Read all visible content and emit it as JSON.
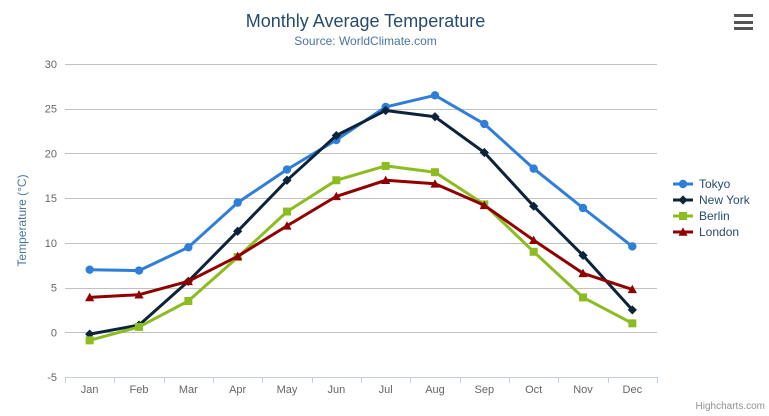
{
  "chart_data": {
    "type": "line",
    "title": "Monthly Average Temperature",
    "subtitle": "Source: WorldClimate.com",
    "xlabel": "",
    "ylabel": "Temperature (°C)",
    "ylim": [
      -5,
      30
    ],
    "yticks": [
      -5,
      0,
      5,
      10,
      15,
      20,
      25,
      30
    ],
    "grid": true,
    "legend_position": "right",
    "categories": [
      "Jan",
      "Feb",
      "Mar",
      "Apr",
      "May",
      "Jun",
      "Jul",
      "Aug",
      "Sep",
      "Oct",
      "Nov",
      "Dec"
    ],
    "series": [
      {
        "name": "Tokyo",
        "color": "#2f7ed8",
        "marker": "circle",
        "values": [
          7.0,
          6.9,
          9.5,
          14.5,
          18.2,
          21.5,
          25.2,
          26.5,
          23.3,
          18.3,
          13.9,
          9.6
        ]
      },
      {
        "name": "New York",
        "color": "#0d233a",
        "marker": "diamond",
        "values": [
          -0.2,
          0.8,
          5.7,
          11.3,
          17.0,
          22.0,
          24.8,
          24.1,
          20.1,
          14.1,
          8.6,
          2.5
        ]
      },
      {
        "name": "Berlin",
        "color": "#8bbc21",
        "marker": "square",
        "values": [
          -0.9,
          0.6,
          3.5,
          8.4,
          13.5,
          17.0,
          18.6,
          17.9,
          14.3,
          9.0,
          3.9,
          1.0
        ]
      },
      {
        "name": "London",
        "color": "#910000",
        "marker": "triangle",
        "values": [
          3.9,
          4.2,
          5.7,
          8.5,
          11.9,
          15.2,
          17.0,
          16.6,
          14.2,
          10.3,
          6.6,
          4.8
        ]
      }
    ]
  },
  "colors": {
    "title": "#274b6d",
    "subtitle": "#4d759e",
    "axis_title": "#4d759e",
    "tick_label": "#666666",
    "gridline": "#c0c0c0",
    "axis_line": "#c0d0e0",
    "legend_text": "#274b6d",
    "credit": "#909090"
  },
  "icons": {
    "export_menu": "hamburger-icon"
  },
  "credit_label": "Highcharts.com"
}
